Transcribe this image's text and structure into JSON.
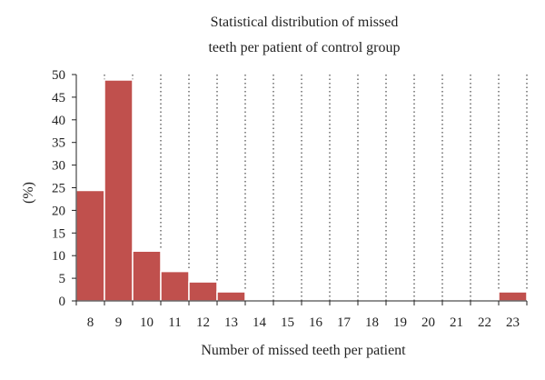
{
  "chart_data": {
    "type": "bar",
    "title_lines": [
      "Statistical distribution of missed",
      "teeth per patient of control group"
    ],
    "xlabel": "Number of missed teeth per patient",
    "ylabel": "(%)",
    "categories": [
      "8",
      "9",
      "10",
      "11",
      "12",
      "13",
      "14",
      "15",
      "16",
      "17",
      "18",
      "19",
      "20",
      "21",
      "22",
      "23"
    ],
    "values": [
      24.4,
      48.8,
      11.0,
      6.5,
      4.2,
      2.0,
      0,
      0,
      0,
      0,
      0,
      0,
      0,
      0,
      0,
      2.0
    ],
    "ylim": [
      0,
      50
    ],
    "yticks": [
      "0",
      "5",
      "10",
      "15",
      "20",
      "25",
      "30",
      "35",
      "40",
      "45",
      "50"
    ],
    "grid": "vertical dotted",
    "bar_color": "#c0504d"
  }
}
